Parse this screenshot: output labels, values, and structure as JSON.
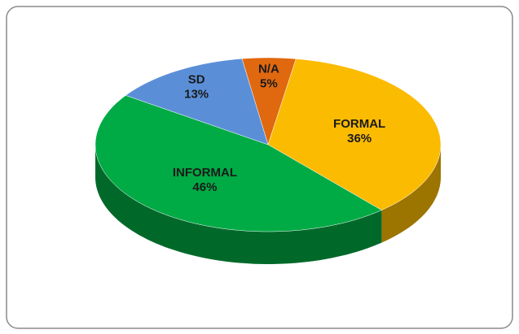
{
  "chart_data": {
    "type": "pie3d",
    "categories": [
      "N/A",
      "FORMAL",
      "INFORMAL",
      "SD"
    ],
    "values": [
      5,
      36,
      46,
      13
    ],
    "value_labels": [
      "5%",
      "36%",
      "46%",
      "13%"
    ],
    "colors": [
      "#e0680f",
      "#fbbb00",
      "#00aa44",
      "#5a8fd8"
    ]
  }
}
